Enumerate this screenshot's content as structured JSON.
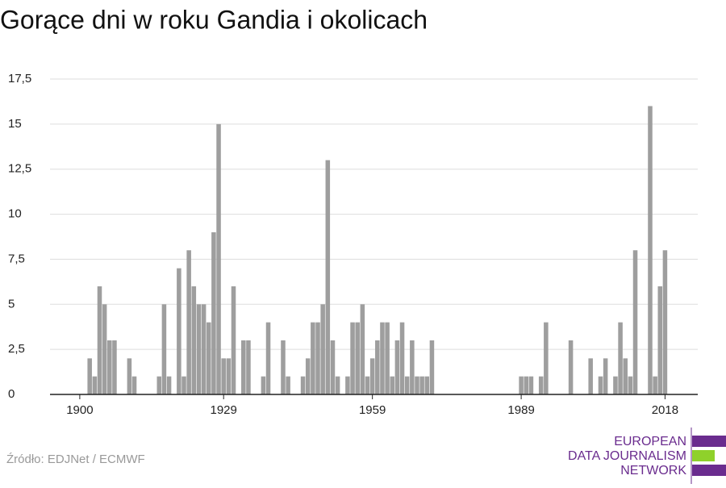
{
  "chart_data": {
    "type": "bar",
    "title": "Gorące dni w roku Gandia i okolicach",
    "x": [
      1902,
      1903,
      1904,
      1905,
      1906,
      1907,
      1910,
      1911,
      1916,
      1917,
      1918,
      1920,
      1921,
      1922,
      1923,
      1924,
      1925,
      1926,
      1927,
      1928,
      1929,
      1930,
      1931,
      1933,
      1934,
      1937,
      1938,
      1941,
      1942,
      1945,
      1946,
      1947,
      1948,
      1949,
      1950,
      1951,
      1952,
      1954,
      1955,
      1956,
      1957,
      1958,
      1959,
      1960,
      1961,
      1962,
      1963,
      1964,
      1965,
      1966,
      1967,
      1968,
      1969,
      1970,
      1971,
      1989,
      1990,
      1991,
      1993,
      1994,
      1999,
      2003,
      2005,
      2006,
      2008,
      2009,
      2010,
      2011,
      2012,
      2015,
      2016,
      2017,
      2018
    ],
    "values": [
      2,
      1,
      6,
      5,
      3,
      3,
      2,
      1,
      1,
      5,
      1,
      7,
      1,
      8,
      6,
      5,
      5,
      4,
      9,
      15,
      2,
      2,
      6,
      3,
      3,
      1,
      4,
      3,
      1,
      1,
      2,
      4,
      4,
      5,
      13,
      3,
      1,
      1,
      4,
      4,
      5,
      1,
      2,
      3,
      4,
      4,
      1,
      3,
      4,
      1,
      3,
      1,
      1,
      1,
      3,
      1,
      1,
      1,
      1,
      4,
      3,
      2,
      1,
      2,
      1,
      4,
      2,
      1,
      8,
      16,
      1,
      6,
      8
    ],
    "color": "#9e9e9e",
    "xlim": [
      1894,
      2024.6
    ],
    "xticks": [
      1900,
      1929,
      1959,
      1989,
      2018
    ],
    "ylim": [
      0,
      17.5
    ],
    "yticks": [
      0,
      {
        "value": 2.5,
        "label": "2,5"
      },
      5,
      {
        "value": 7.5,
        "label": "7,5"
      },
      10,
      {
        "value": 12.5,
        "label": "12,5"
      },
      15,
      {
        "value": 17.5,
        "label": "17,5"
      }
    ],
    "grid": true,
    "source": "Źródło: EDJNet / ECMWF",
    "logo": [
      "EUROPEAN",
      "DATA JOURNALISM",
      "NETWORK"
    ]
  }
}
